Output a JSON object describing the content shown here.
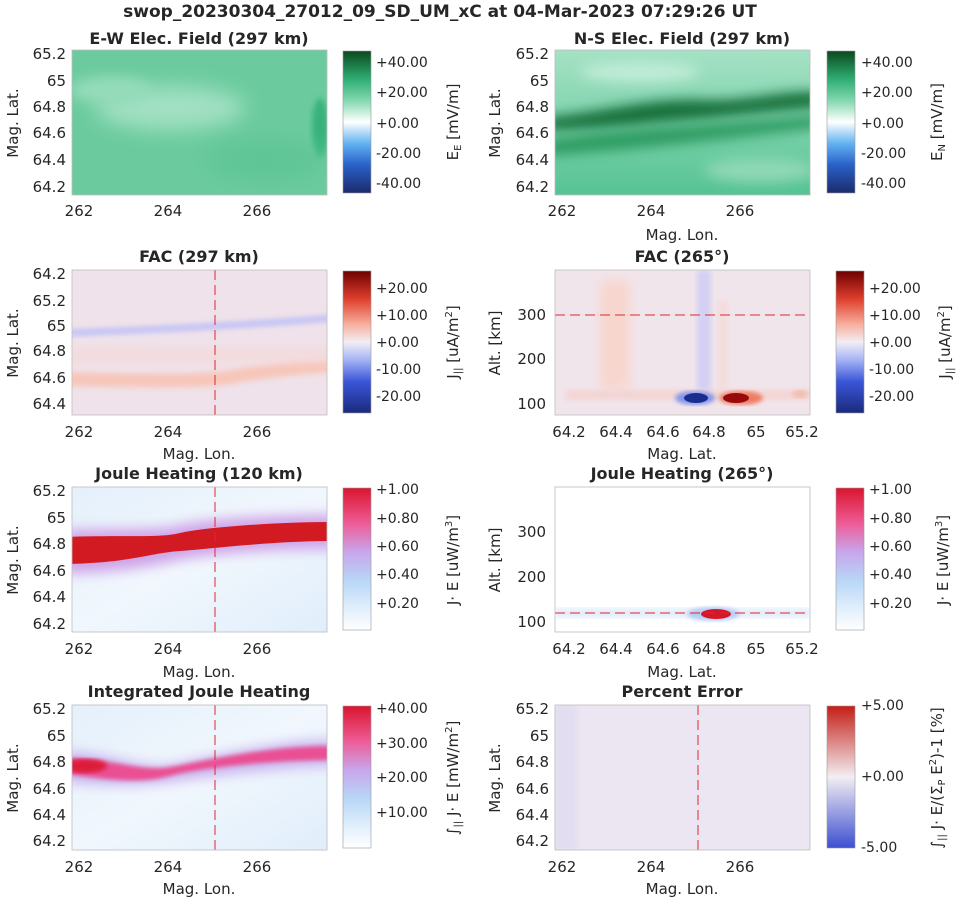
{
  "figure_title": "swop_20230304_27012_09_SD_UM_xC at 04-Mar-2023 07:29:26 UT",
  "chart_data": [
    {
      "id": "ew",
      "type": "heatmap",
      "title": "E-W Elec. Field (297 km)",
      "xlabel": "Mag. Lon.",
      "ylabel": "Mag. Lat.",
      "xlim": [
        261.8,
        267.5
      ],
      "ylim": [
        64.15,
        65.22
      ],
      "xticks": [
        "262",
        "264",
        "266"
      ],
      "yticks": [
        "64.2",
        "64.4",
        "64.6",
        "64.8",
        "65",
        "65.2"
      ],
      "colorbar": {
        "ticks": [
          "+40.00",
          "+20.00",
          "+0.00",
          "-20.00",
          "-40.00"
        ],
        "label": "E_E [mV/m]",
        "range": [
          -50,
          50
        ]
      },
      "colormap": "green-white-blue",
      "pattern": "uniform ~ +12 mV/m across the domain"
    },
    {
      "id": "ns",
      "type": "heatmap",
      "title": "N-S Elec. Field (297 km)",
      "xlabel": "Mag. Lon.",
      "ylabel": "Mag. Lat.",
      "xlim": [
        261.8,
        267.5
      ],
      "ylim": [
        64.15,
        65.22
      ],
      "xticks": [
        "262",
        "264",
        "266"
      ],
      "yticks": [
        "64.2",
        "64.4",
        "64.6",
        "64.8",
        "65",
        "65.2"
      ],
      "colorbar": {
        "ticks": [
          "+40.00",
          "+20.00",
          "+0.00",
          "-20.00",
          "-40.00"
        ],
        "label": "E_N [mV/m]",
        "range": [
          -50,
          50
        ]
      },
      "colormap": "green-white-blue",
      "pattern": "strong positive band (~+40 mV/m) near 64.8 lat, weaker elsewhere"
    },
    {
      "id": "fac_map",
      "type": "heatmap",
      "title": "FAC (297 km)",
      "xlabel": "Mag. Lon.",
      "ylabel": "Mag. Lat.",
      "xlim": [
        261.8,
        267.5
      ],
      "ylim": [
        64.15,
        65.22
      ],
      "xticks": [
        "262",
        "264",
        "266"
      ],
      "yticks": [
        "64.2",
        "64.4",
        "64.6",
        "64.8",
        "65",
        "65.2"
      ],
      "colorbar": {
        "ticks": [
          "+20.00",
          "+10.00",
          "+0.00",
          "-10.00",
          "-20.00"
        ],
        "label": "J_|| [uA/m^2]",
        "range": [
          -25,
          25
        ]
      },
      "colormap": "red-white-blue",
      "pattern": "weak negative band near 64.75-64.85, weak positive band near 64.4-64.5",
      "ref_line_lon": 265
    },
    {
      "id": "fac_alt",
      "type": "heatmap",
      "title": "FAC (265°)",
      "xlabel": "Mag. Lat.",
      "ylabel": "Alt. [km]",
      "xlim": [
        64.15,
        65.22
      ],
      "ylim": [
        80,
        395
      ],
      "xticks": [
        "64.2",
        "64.4",
        "64.6",
        "64.8",
        "65",
        "65.2"
      ],
      "yticks": [
        "100",
        "200",
        "300"
      ],
      "colorbar": {
        "ticks": [
          "+20.00",
          "+10.00",
          "+0.00",
          "-10.00",
          "-20.00"
        ],
        "label": "J_|| [uA/m^2]",
        "range": [
          -25,
          25
        ]
      },
      "colormap": "red-white-blue",
      "pattern": "negative spot at 64.75 lat/110 km, positive spot at 64.88 lat/110 km, vertical columns above",
      "ref_line_alt": 300
    },
    {
      "id": "jh_map",
      "type": "heatmap",
      "title": "Joule Heating (120 km)",
      "xlabel": "Mag. Lon.",
      "ylabel": "Mag. Lat.",
      "xlim": [
        261.8,
        267.5
      ],
      "ylim": [
        64.15,
        65.22
      ],
      "xticks": [
        "262",
        "264",
        "266"
      ],
      "yticks": [
        "64.2",
        "64.4",
        "64.6",
        "64.8",
        "65",
        "65.2"
      ],
      "colorbar": {
        "ticks": [
          "+1.00",
          "+0.80",
          "+0.60",
          "+0.40",
          "+0.20"
        ],
        "label": "J · E [uW/m^3]",
        "range": [
          0,
          1
        ]
      },
      "colormap": "white-blue-red",
      "pattern": "saturated band at ~64.75 (lon 262) rising to ~64.9 (lon 267.5)",
      "ref_line_lon": 265
    },
    {
      "id": "jh_alt",
      "type": "heatmap",
      "title": "Joule Heating (265°)",
      "xlabel": "Mag. Lat.",
      "ylabel": "Alt. [km]",
      "xlim": [
        64.15,
        65.22
      ],
      "ylim": [
        80,
        395
      ],
      "xticks": [
        "64.2",
        "64.4",
        "64.6",
        "64.8",
        "65",
        "65.2"
      ],
      "yticks": [
        "100",
        "200",
        "300"
      ],
      "colorbar": {
        "ticks": [
          "+1.00",
          "+0.80",
          "+0.60",
          "+0.40",
          "+0.20"
        ],
        "label": "J · E [uW/m^3]",
        "range": [
          0,
          1
        ]
      },
      "colormap": "white-blue-red",
      "pattern": "compact hot spot at 64.8 lat / 118 km",
      "ref_line_alt": 120
    },
    {
      "id": "ijh",
      "type": "heatmap",
      "title": "Integrated Joule Heating",
      "xlabel": "Mag. Lon.",
      "ylabel": "Mag. Lat.",
      "xlim": [
        261.8,
        267.5
      ],
      "ylim": [
        64.15,
        65.22
      ],
      "xticks": [
        "262",
        "264",
        "266"
      ],
      "yticks": [
        "64.2",
        "64.4",
        "64.6",
        "64.8",
        "65",
        "65.2"
      ],
      "colorbar": {
        "ticks": [
          "+40.00",
          "+30.00",
          "+20.00",
          "+10.00"
        ],
        "label": "∫|| J · E [mW/m^2]",
        "range": [
          0,
          45
        ]
      },
      "colormap": "white-blue-red",
      "pattern": "band from ~64.75 (lon 262) to ~64.9 (lon 267.5), peak ~+40",
      "ref_line_lon": 265
    },
    {
      "id": "err",
      "type": "heatmap",
      "title": "Percent Error",
      "xlabel": "Mag. Lon.",
      "ylabel": "Mag. Lat.",
      "xlim": [
        261.8,
        267.5
      ],
      "ylim": [
        64.15,
        65.22
      ],
      "xticks": [
        "262",
        "264",
        "266"
      ],
      "yticks": [
        "64.2",
        "64.4",
        "64.6",
        "64.8",
        "65",
        "65.2"
      ],
      "colorbar": {
        "ticks": [
          "+5.00",
          "+0.00",
          "-5.00"
        ],
        "label": "∫|| J · E/(Σ_P E^2)-1 [%]",
        "range": [
          -5,
          5
        ]
      },
      "colormap": "red-white-blue",
      "pattern": "nearly uniform ~ -0.3 %",
      "ref_line_lon": 265
    }
  ]
}
